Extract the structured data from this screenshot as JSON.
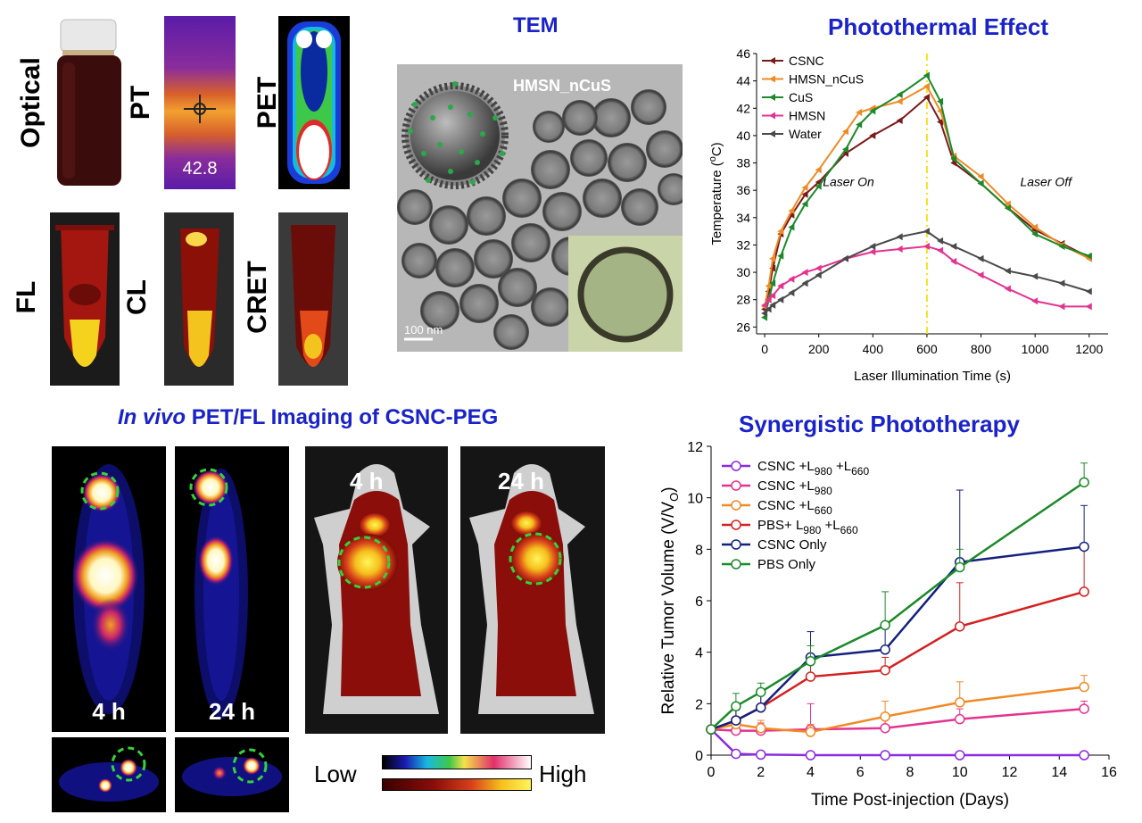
{
  "figure": {
    "optical_panels": {
      "labels": [
        "Optical",
        "PT",
        "PET",
        "FL",
        "CL",
        "CRET"
      ],
      "pt_temperature": "42.8"
    },
    "tem": {
      "title": "TEM",
      "particle_label": "HMSN_nCuS",
      "scale_bar": "100 nm"
    },
    "photothermal": {
      "title": "Photothermal Effect",
      "laser_on": "Laser On",
      "laser_off": "Laser Off",
      "superscript_o": "o",
      "temp_unit_c": "C"
    },
    "invivo": {
      "title_italic": "In vivo",
      "title_rest": " PET/FL Imaging of CSNC-PEG",
      "times": [
        "4 h",
        "24 h",
        "4 h",
        "24 h"
      ],
      "scale_low": "Low",
      "scale_high": "High"
    },
    "synergistic": {
      "title": "Synergistic Phototherapy"
    }
  },
  "chart_data": [
    {
      "type": "line",
      "title": "Photothermal Effect",
      "xlabel": "Laser Illumination Time (s)",
      "ylabel_parts": [
        "Temperature (",
        "o",
        "C)"
      ],
      "xlim": [
        -30,
        1270
      ],
      "ylim": [
        25.5,
        46
      ],
      "xticks": [
        0,
        200,
        400,
        600,
        800,
        1000,
        1200
      ],
      "yticks": [
        26,
        28,
        30,
        32,
        34,
        36,
        38,
        40,
        42,
        44,
        46
      ],
      "vline_x": 600,
      "legend_position": "top-left",
      "series": [
        {
          "name": "CSNC",
          "color": "#7b1a1a",
          "x": [
            0,
            15,
            30,
            60,
            100,
            150,
            200,
            300,
            400,
            500,
            600,
            650,
            700,
            800,
            900,
            1000,
            1100,
            1200
          ],
          "y": [
            27.3,
            28.6,
            30.3,
            32.8,
            34.2,
            35.7,
            36.6,
            38.7,
            40.0,
            41.1,
            42.8,
            41.0,
            38.0,
            36.5,
            34.7,
            33.1,
            32.1,
            31.1
          ]
        },
        {
          "name": "HMSN_nCuS",
          "color": "#f08a24",
          "x": [
            0,
            15,
            30,
            60,
            100,
            150,
            200,
            300,
            350,
            400,
            500,
            600,
            650,
            700,
            800,
            900,
            1000,
            1100,
            1200
          ],
          "y": [
            27.5,
            29.0,
            31.0,
            33.0,
            34.5,
            36.2,
            37.5,
            40.3,
            41.7,
            42.0,
            42.5,
            43.6,
            41.8,
            38.5,
            37.0,
            35.0,
            33.3,
            32.0,
            31.0
          ]
        },
        {
          "name": "CuS",
          "color": "#1c8a2a",
          "x": [
            0,
            15,
            30,
            60,
            100,
            150,
            200,
            300,
            350,
            400,
            500,
            600,
            650,
            700,
            800,
            900,
            1000,
            1100,
            1200
          ],
          "y": [
            26.7,
            28.0,
            29.2,
            31.2,
            33.3,
            35.0,
            36.3,
            39.0,
            40.8,
            41.8,
            43.0,
            44.4,
            42.5,
            38.3,
            36.5,
            34.7,
            32.8,
            31.9,
            31.2
          ]
        },
        {
          "name": "HMSN",
          "color": "#e4338f",
          "x": [
            0,
            15,
            30,
            60,
            100,
            150,
            200,
            300,
            400,
            500,
            600,
            650,
            700,
            800,
            900,
            1000,
            1100,
            1200
          ],
          "y": [
            27.6,
            28.0,
            28.3,
            29.0,
            29.5,
            30.0,
            30.3,
            31.0,
            31.5,
            31.7,
            31.9,
            31.6,
            30.8,
            29.8,
            28.8,
            27.9,
            27.5,
            27.5
          ]
        },
        {
          "name": "Water",
          "color": "#4a4a4a",
          "x": [
            0,
            15,
            30,
            60,
            100,
            150,
            200,
            300,
            400,
            500,
            600,
            650,
            700,
            800,
            900,
            1000,
            1100,
            1200
          ],
          "y": [
            27.0,
            27.3,
            27.6,
            28.0,
            28.5,
            29.2,
            29.8,
            31.0,
            31.9,
            32.6,
            33.0,
            32.3,
            31.9,
            31.0,
            30.1,
            29.7,
            29.2,
            28.6
          ]
        }
      ]
    },
    {
      "type": "line",
      "title": "Synergistic Phototherapy",
      "xlabel": "Time Post-injection (Days)",
      "ylabel_parts": [
        "Relative Tumor Volume (V/V",
        "O",
        ")"
      ],
      "xlim": [
        0,
        16
      ],
      "ylim": [
        0,
        12
      ],
      "xticks": [
        0,
        2,
        4,
        6,
        8,
        10,
        12,
        14,
        16
      ],
      "yticks": [
        0,
        2,
        4,
        6,
        8,
        10,
        12
      ],
      "legend_position": "top-left",
      "series": [
        {
          "name_parts": [
            "CSNC +L",
            "980",
            " +L",
            "660"
          ],
          "color": "#8a2be2",
          "x": [
            0,
            1,
            2,
            4,
            7,
            10,
            15
          ],
          "y": [
            1.0,
            0.05,
            0.02,
            0.0,
            0.0,
            0.0,
            0.0
          ],
          "err": [
            0,
            0.05,
            0.05,
            0,
            0,
            0,
            0
          ]
        },
        {
          "name_parts": [
            "CSNC +L",
            "980"
          ],
          "color": "#e4338f",
          "x": [
            0,
            1,
            2,
            4,
            7,
            10,
            15
          ],
          "y": [
            1.0,
            0.95,
            0.95,
            1.0,
            1.05,
            1.4,
            1.8
          ],
          "err": [
            0,
            0.3,
            0.3,
            1.0,
            0.4,
            0.4,
            0.3
          ]
        },
        {
          "name_parts": [
            "CSNC +L",
            "660"
          ],
          "color": "#f08a24",
          "x": [
            0,
            1,
            2,
            4,
            7,
            10,
            15
          ],
          "y": [
            1.0,
            1.2,
            1.05,
            0.9,
            1.5,
            2.05,
            2.65
          ],
          "err": [
            0,
            0.3,
            0.3,
            0.3,
            0.6,
            0.8,
            0.45
          ]
        },
        {
          "name_parts": [
            "PBS+ L",
            "980",
            " +L",
            "660"
          ],
          "color": "#d42020",
          "x": [
            0,
            1,
            2,
            4,
            7,
            10,
            15
          ],
          "y": [
            1.0,
            1.35,
            1.85,
            3.05,
            3.3,
            5.0,
            6.35
          ],
          "err": [
            0,
            0.4,
            0.5,
            0.5,
            0.5,
            1.7,
            1.8
          ]
        },
        {
          "name_parts": [
            "CSNC Only"
          ],
          "color": "#14207e",
          "x": [
            0,
            1,
            2,
            4,
            7,
            10,
            15
          ],
          "y": [
            1.0,
            1.35,
            1.85,
            3.8,
            4.1,
            7.5,
            8.1
          ],
          "err": [
            0,
            0.4,
            0.5,
            1.0,
            0.9,
            2.8,
            1.6
          ]
        },
        {
          "name_parts": [
            "PBS Only"
          ],
          "color": "#1c8a2a",
          "x": [
            0,
            1,
            2,
            4,
            7,
            10,
            15
          ],
          "y": [
            1.0,
            1.9,
            2.45,
            3.65,
            5.05,
            7.3,
            10.6
          ],
          "err": [
            0,
            0.5,
            0.35,
            0.6,
            1.3,
            0.7,
            0.75
          ]
        }
      ]
    }
  ]
}
